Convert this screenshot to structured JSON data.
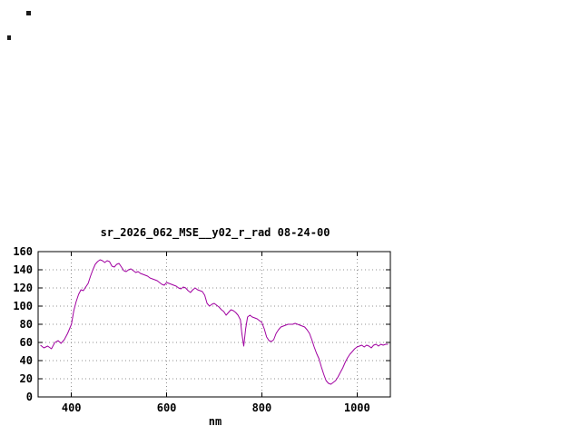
{
  "window": {
    "background": "#ffffff"
  },
  "chart": {
    "colors": {
      "line": "#a000a0",
      "grid": "#909090",
      "axis": "#000000",
      "text": "#000000"
    }
  },
  "chart_data": {
    "type": "line",
    "title": "sr_2026_062_MSE__y02_r_rad 08-24-00",
    "xlabel": "nm",
    "ylabel": "",
    "xlim": [
      330,
      1070
    ],
    "ylim": [
      0,
      160
    ],
    "x_ticks": [
      400,
      600,
      800,
      1000
    ],
    "y_ticks": [
      0,
      20,
      40,
      60,
      80,
      100,
      120,
      140,
      160
    ],
    "grid": true,
    "legend": "none",
    "series": [
      {
        "name": "sr_2026_062_MSE__y02_r_rad",
        "color": "#a000a0",
        "x": [
          335,
          342,
          350,
          358,
          365,
          372,
          378,
          385,
          392,
          400,
          405,
          410,
          415,
          420,
          425,
          430,
          435,
          440,
          445,
          450,
          455,
          460,
          465,
          470,
          475,
          480,
          485,
          490,
          495,
          500,
          505,
          510,
          515,
          520,
          525,
          530,
          535,
          540,
          545,
          550,
          555,
          560,
          565,
          570,
          575,
          580,
          585,
          590,
          595,
          600,
          605,
          610,
          615,
          620,
          625,
          630,
          635,
          640,
          645,
          650,
          655,
          660,
          665,
          670,
          675,
          680,
          685,
          690,
          695,
          700,
          705,
          710,
          715,
          720,
          725,
          730,
          735,
          740,
          745,
          750,
          755,
          758,
          762,
          766,
          770,
          775,
          780,
          785,
          790,
          795,
          800,
          805,
          810,
          815,
          820,
          825,
          830,
          835,
          840,
          845,
          850,
          855,
          860,
          865,
          870,
          875,
          880,
          885,
          890,
          895,
          900,
          905,
          910,
          915,
          920,
          925,
          930,
          935,
          940,
          945,
          950,
          955,
          960,
          965,
          970,
          975,
          980,
          985,
          990,
          995,
          1000,
          1005,
          1010,
          1015,
          1020,
          1025,
          1030,
          1035,
          1040,
          1045,
          1050,
          1055,
          1060,
          1065
        ],
        "y": [
          57,
          54,
          56,
          53,
          60,
          62,
          59,
          63,
          70,
          80,
          95,
          105,
          113,
          118,
          117,
          121,
          125,
          133,
          140,
          146,
          149,
          151,
          150,
          148,
          150,
          149,
          144,
          143,
          146,
          147,
          143,
          139,
          138,
          140,
          141,
          139,
          137,
          138,
          136,
          135,
          134,
          133,
          131,
          130,
          129,
          128,
          126,
          124,
          123,
          126,
          125,
          124,
          123,
          122,
          120,
          119,
          121,
          120,
          117,
          115,
          118,
          120,
          118,
          117,
          116,
          112,
          103,
          100,
          102,
          103,
          101,
          99,
          96,
          94,
          90,
          93,
          96,
          95,
          93,
          90,
          85,
          70,
          56,
          75,
          88,
          90,
          88,
          87,
          86,
          84,
          82,
          75,
          66,
          62,
          61,
          63,
          70,
          74,
          77,
          78,
          79,
          80,
          80,
          80,
          81,
          80,
          79,
          78,
          77,
          74,
          70,
          63,
          55,
          48,
          42,
          33,
          25,
          18,
          15,
          14,
          16,
          18,
          22,
          27,
          32,
          38,
          43,
          47,
          50,
          53,
          55,
          56,
          57,
          55,
          57,
          56,
          54,
          57,
          58,
          56,
          58,
          57,
          58,
          58
        ]
      }
    ]
  }
}
